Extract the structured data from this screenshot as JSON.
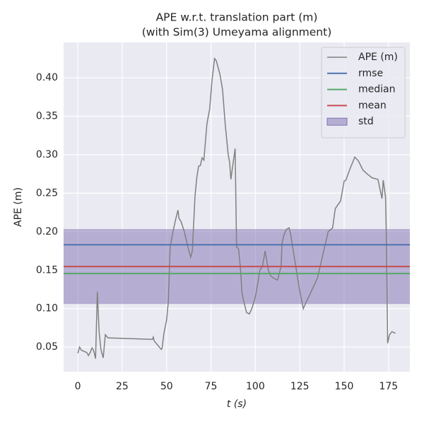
{
  "chart_data": {
    "type": "line",
    "title": "APE w.r.t. translation part (m)",
    "subtitle": "(with Sim(3) Umeyama alignment)",
    "xlabel": "t (s)",
    "ylabel": "APE (m)",
    "xlim": [
      -8,
      187
    ],
    "ylim": [
      0.018,
      0.446
    ],
    "xticks": [
      0,
      25,
      50,
      75,
      100,
      125,
      150,
      175
    ],
    "yticks": [
      {
        "value": 0.05,
        "label": "0.05"
      },
      {
        "value": 0.1,
        "label": "0.10"
      },
      {
        "value": 0.15,
        "label": "0.15"
      },
      {
        "value": 0.2,
        "label": "0.20"
      },
      {
        "value": 0.25,
        "label": "0.25"
      },
      {
        "value": 0.3,
        "label": "0.30"
      },
      {
        "value": 0.35,
        "label": "0.35"
      },
      {
        "value": 0.4,
        "label": "0.40"
      }
    ],
    "grid": true,
    "legend": "upper right",
    "series": [
      {
        "name": "APE (m)",
        "color": "#808080",
        "x": [
          0,
          1,
          2,
          4,
          5,
          6,
          7,
          8,
          9,
          10,
          11,
          12,
          13,
          14.3,
          15.5,
          17,
          42,
          42.5,
          43,
          47,
          47.5,
          48.5,
          50,
          51,
          52,
          53.6,
          55,
          56.4,
          57,
          58,
          60,
          62,
          63.6,
          64.5,
          66,
          67,
          68,
          69,
          70,
          71,
          72.7,
          74.3,
          75.5,
          77,
          78,
          80,
          81.5,
          83,
          84.7,
          85.5,
          86.2,
          87.5,
          88.6,
          89.4,
          90.5,
          91.5,
          92.5,
          93.4,
          95,
          96.6,
          98,
          100,
          101.5,
          102.5,
          104,
          105.5,
          107.3,
          108.5,
          110,
          112.5,
          114.5,
          115,
          116,
          117.5,
          119,
          120,
          121,
          122.4,
          124.8,
          127,
          128.5,
          130,
          132,
          135,
          138,
          141,
          143.5,
          145,
          148,
          150,
          151,
          153,
          156,
          158,
          160.6,
          163,
          165.7,
          169,
          171.3,
          172,
          173.3,
          173.7,
          174.5,
          175.5,
          176.9,
          178.9
        ],
        "values": [
          0.042,
          0.05,
          0.046,
          0.044,
          0.043,
          0.039,
          0.043,
          0.049,
          0.045,
          0.035,
          0.122,
          0.07,
          0.047,
          0.036,
          0.066,
          0.062,
          0.06,
          0.063,
          0.058,
          0.047,
          0.049,
          0.068,
          0.085,
          0.11,
          0.18,
          0.2,
          0.215,
          0.228,
          0.217,
          0.214,
          0.2,
          0.18,
          0.167,
          0.175,
          0.246,
          0.27,
          0.285,
          0.286,
          0.296,
          0.293,
          0.34,
          0.36,
          0.395,
          0.425,
          0.422,
          0.405,
          0.385,
          0.34,
          0.3,
          0.29,
          0.268,
          0.29,
          0.308,
          0.18,
          0.178,
          0.155,
          0.12,
          0.11,
          0.095,
          0.093,
          0.1,
          0.115,
          0.135,
          0.15,
          0.155,
          0.175,
          0.15,
          0.143,
          0.14,
          0.137,
          0.155,
          0.185,
          0.195,
          0.203,
          0.205,
          0.195,
          0.18,
          0.16,
          0.125,
          0.1,
          0.108,
          0.115,
          0.125,
          0.14,
          0.17,
          0.2,
          0.205,
          0.23,
          0.24,
          0.266,
          0.267,
          0.28,
          0.297,
          0.292,
          0.28,
          0.275,
          0.27,
          0.268,
          0.243,
          0.267,
          0.245,
          0.2,
          0.055,
          0.066,
          0.07,
          0.068
        ]
      }
    ],
    "stats": [
      {
        "name": "rmse",
        "color": "#4c72b0",
        "value": 0.183
      },
      {
        "name": "median",
        "color": "#55a868",
        "value": 0.1455
      },
      {
        "name": "mean",
        "color": "#c44e52",
        "value": 0.1547
      }
    ],
    "std_band": {
      "name": "std",
      "color": "#8172b2",
      "value": 0.0487
    }
  }
}
